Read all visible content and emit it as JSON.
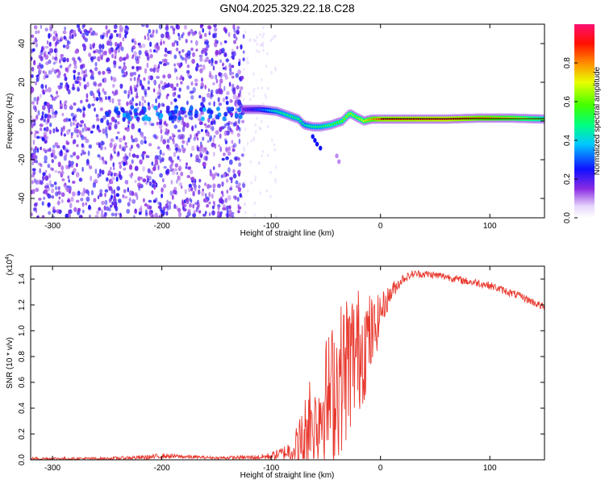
{
  "chart_data": [
    {
      "type": "heatmap",
      "title": "GN04.2025.329.22.18.C28",
      "xlabel": "Height of straight line (km)",
      "ylabel": "Frequency (Hz)",
      "xlim": [
        -320,
        150
      ],
      "ylim": [
        -50,
        50
      ],
      "xticks": [
        "-300",
        "-200",
        "-100",
        "0",
        "100"
      ],
      "xtick_values": [
        -300,
        -200,
        -100,
        0,
        100
      ],
      "yticks": [
        "-40",
        "-20",
        "0",
        "20",
        "40"
      ],
      "ytick_values": [
        -40,
        -20,
        0,
        20,
        40
      ],
      "noise_region_x": [
        -320,
        -125
      ],
      "signal_track": {
        "x": [
          -125,
          -110,
          -95,
          -85,
          -75,
          -70,
          -62,
          -55,
          -45,
          -35,
          -28,
          -22,
          -15,
          -8,
          0,
          30,
          60,
          90,
          120,
          150
        ],
        "y": [
          6,
          6,
          5,
          3,
          1,
          -2,
          -3,
          -3,
          -2,
          0,
          4,
          2,
          0,
          1,
          1,
          1,
          1,
          1.5,
          1.5,
          1
        ],
        "amplitude": [
          0.2,
          0.3,
          0.45,
          0.5,
          0.5,
          0.45,
          0.5,
          0.5,
          0.55,
          0.6,
          0.65,
          0.6,
          0.7,
          0.8,
          0.9,
          0.92,
          0.95,
          0.85,
          0.75,
          0.6
        ]
      },
      "colorbar": {
        "label": "Normalized spectral amplitude",
        "range": [
          0,
          1
        ],
        "ticks": [
          "0.0",
          "0.2",
          "0.4",
          "0.6",
          "0.8"
        ],
        "tick_values": [
          0,
          0.2,
          0.4,
          0.6,
          0.8
        ]
      }
    },
    {
      "type": "line",
      "xlabel": "Height of straight line (km)",
      "ylabel": "SNR (10 * v/v)",
      "y_multiplier": "(x10",
      "y_multiplier_exp": "4",
      "y_multiplier_close": ")",
      "xlim": [
        -320,
        150
      ],
      "ylim": [
        0,
        1.5
      ],
      "xticks": [
        "-300",
        "-200",
        "-100",
        "0",
        "100"
      ],
      "xtick_values": [
        -300,
        -200,
        -100,
        0,
        100
      ],
      "yticks": [
        "0.0",
        "0.2",
        "0.4",
        "0.6",
        "0.8",
        "1.0",
        "1.2",
        "1.4"
      ],
      "ytick_values": [
        0,
        0.2,
        0.4,
        0.6,
        0.8,
        1.0,
        1.2,
        1.4
      ],
      "series": [
        {
          "name": "SNR",
          "color": "#e8382e",
          "x": [
            -320,
            -250,
            -210,
            -200,
            -150,
            -110,
            -100,
            -90,
            -80,
            -70,
            -65,
            -60,
            -55,
            -50,
            -45,
            -40,
            -35,
            -30,
            -25,
            -20,
            -15,
            -10,
            -5,
            0,
            5,
            10,
            15,
            20,
            25,
            30,
            40,
            50,
            60,
            70,
            80,
            90,
            100,
            110,
            120,
            130,
            140,
            150
          ],
          "y": [
            0.01,
            0.01,
            0.02,
            0.03,
            0.015,
            0.02,
            0.03,
            0.05,
            0.08,
            0.15,
            0.35,
            0.3,
            0.4,
            0.45,
            0.5,
            0.6,
            0.65,
            0.75,
            0.8,
            0.85,
            0.9,
            0.95,
            1.0,
            1.15,
            1.22,
            1.3,
            1.35,
            1.4,
            1.42,
            1.44,
            1.44,
            1.43,
            1.42,
            1.4,
            1.38,
            1.37,
            1.35,
            1.32,
            1.29,
            1.26,
            1.22,
            1.18
          ],
          "noise_envelope": [
            0.01,
            0.01,
            0.02,
            0.02,
            0.01,
            0.02,
            0.03,
            0.05,
            0.1,
            0.3,
            0.35,
            0.35,
            0.45,
            0.5,
            0.55,
            0.6,
            0.6,
            0.6,
            0.55,
            0.5,
            0.45,
            0.35,
            0.25,
            0.15,
            0.1,
            0.08,
            0.05,
            0.04,
            0.03,
            0.03,
            0.03,
            0.03,
            0.03,
            0.03,
            0.03,
            0.03,
            0.03,
            0.03,
            0.03,
            0.03,
            0.03,
            0.03
          ]
        }
      ]
    }
  ],
  "colors": {
    "axis": "#000000",
    "line": "#e8382e",
    "noise_dot": "#7a1fe0"
  }
}
